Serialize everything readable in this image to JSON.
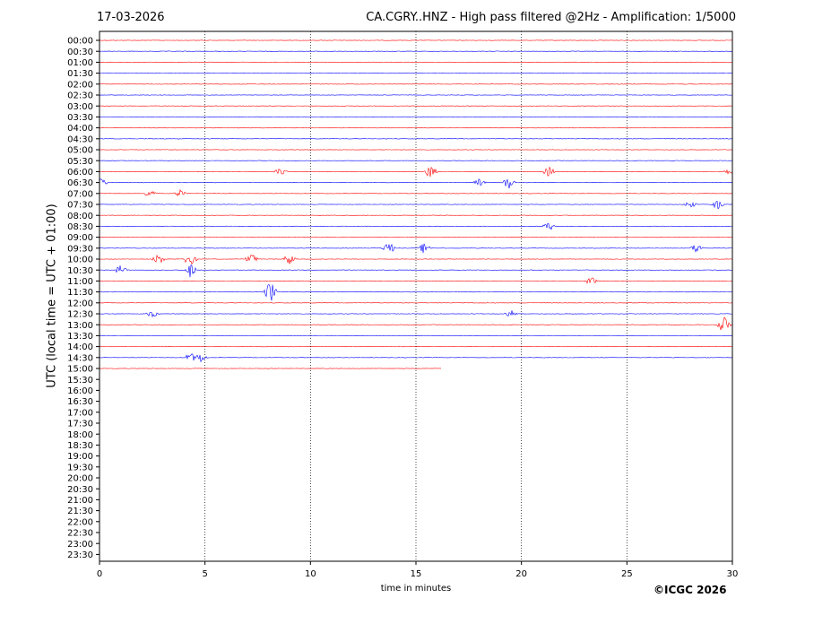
{
  "header": {
    "date": "17-03-2026",
    "title": "CA.CGRY..HNZ - High pass filtered @2Hz - Amplification: 1/5000"
  },
  "footer": {
    "copyright": "©ICGC 2026"
  },
  "chart_data": {
    "type": "line",
    "title": "CA.CGRY..HNZ - High pass filtered @2Hz - Amplification: 1/5000",
    "xlabel": "time in minutes",
    "ylabel": "UTC (local time = UTC + 01:00)",
    "xlim": [
      0,
      30
    ],
    "x_ticks": [
      "0",
      "5",
      "10",
      "15",
      "20",
      "25",
      "30"
    ],
    "y_ticks": [
      "00:00",
      "00:30",
      "01:00",
      "01:30",
      "02:00",
      "02:30",
      "03:00",
      "03:30",
      "04:00",
      "04:30",
      "05:00",
      "05:30",
      "06:00",
      "06:30",
      "07:00",
      "07:30",
      "08:00",
      "08:30",
      "09:00",
      "09:30",
      "10:00",
      "10:30",
      "11:00",
      "11:30",
      "12:00",
      "12:30",
      "13:00",
      "13:30",
      "14:00",
      "14:30",
      "15:00",
      "15:30",
      "16:00",
      "16:30",
      "17:00",
      "17:30",
      "18:00",
      "18:30",
      "19:00",
      "19:30",
      "20:00",
      "20:30",
      "21:00",
      "21:30",
      "22:00",
      "22:30",
      "23:00",
      "23:30"
    ],
    "grid": "vertical dotted lines at x ticks",
    "trace_colors": [
      "#ff0000",
      "#0000ff"
    ],
    "traces_recorded": 31,
    "last_trace_end_minute": 16.2,
    "events": [
      {
        "row": "06:00",
        "minute": 8.6,
        "amplitude": 0.35
      },
      {
        "row": "06:00",
        "minute": 15.7,
        "amplitude": 0.55
      },
      {
        "row": "06:00",
        "minute": 21.3,
        "amplitude": 0.4
      },
      {
        "row": "06:00",
        "minute": 29.9,
        "amplitude": 0.3
      },
      {
        "row": "06:30",
        "minute": 0.1,
        "amplitude": 0.35
      },
      {
        "row": "06:30",
        "minute": 19.4,
        "amplitude": 0.55
      },
      {
        "row": "06:30",
        "minute": 18.0,
        "amplitude": 0.3
      },
      {
        "row": "07:00",
        "minute": 2.4,
        "amplitude": 0.35
      },
      {
        "row": "07:00",
        "minute": 3.8,
        "amplitude": 0.3
      },
      {
        "row": "07:30",
        "minute": 28.0,
        "amplitude": 0.3
      },
      {
        "row": "07:30",
        "minute": 29.3,
        "amplitude": 0.4
      },
      {
        "row": "08:30",
        "minute": 21.3,
        "amplitude": 0.35
      },
      {
        "row": "09:30",
        "minute": 13.7,
        "amplitude": 0.55
      },
      {
        "row": "09:30",
        "minute": 15.4,
        "amplitude": 0.45
      },
      {
        "row": "09:30",
        "minute": 28.3,
        "amplitude": 0.4
      },
      {
        "row": "10:00",
        "minute": 2.8,
        "amplitude": 0.45
      },
      {
        "row": "10:00",
        "minute": 4.3,
        "amplitude": 0.75
      },
      {
        "row": "10:00",
        "minute": 7.2,
        "amplitude": 0.5
      },
      {
        "row": "10:00",
        "minute": 9.0,
        "amplitude": 0.45
      },
      {
        "row": "10:30",
        "minute": 1.0,
        "amplitude": 0.4
      },
      {
        "row": "10:30",
        "minute": 4.3,
        "amplitude": 0.6
      },
      {
        "row": "11:00",
        "minute": 23.3,
        "amplitude": 0.35
      },
      {
        "row": "11:30",
        "minute": 8.1,
        "amplitude": 0.9
      },
      {
        "row": "12:30",
        "minute": 2.5,
        "amplitude": 0.3
      },
      {
        "row": "12:30",
        "minute": 19.5,
        "amplitude": 0.3
      },
      {
        "row": "13:00",
        "minute": 29.6,
        "amplitude": 0.8
      },
      {
        "row": "14:30",
        "minute": 4.3,
        "amplitude": 0.4
      },
      {
        "row": "14:30",
        "minute": 4.8,
        "amplitude": 0.4
      }
    ]
  }
}
